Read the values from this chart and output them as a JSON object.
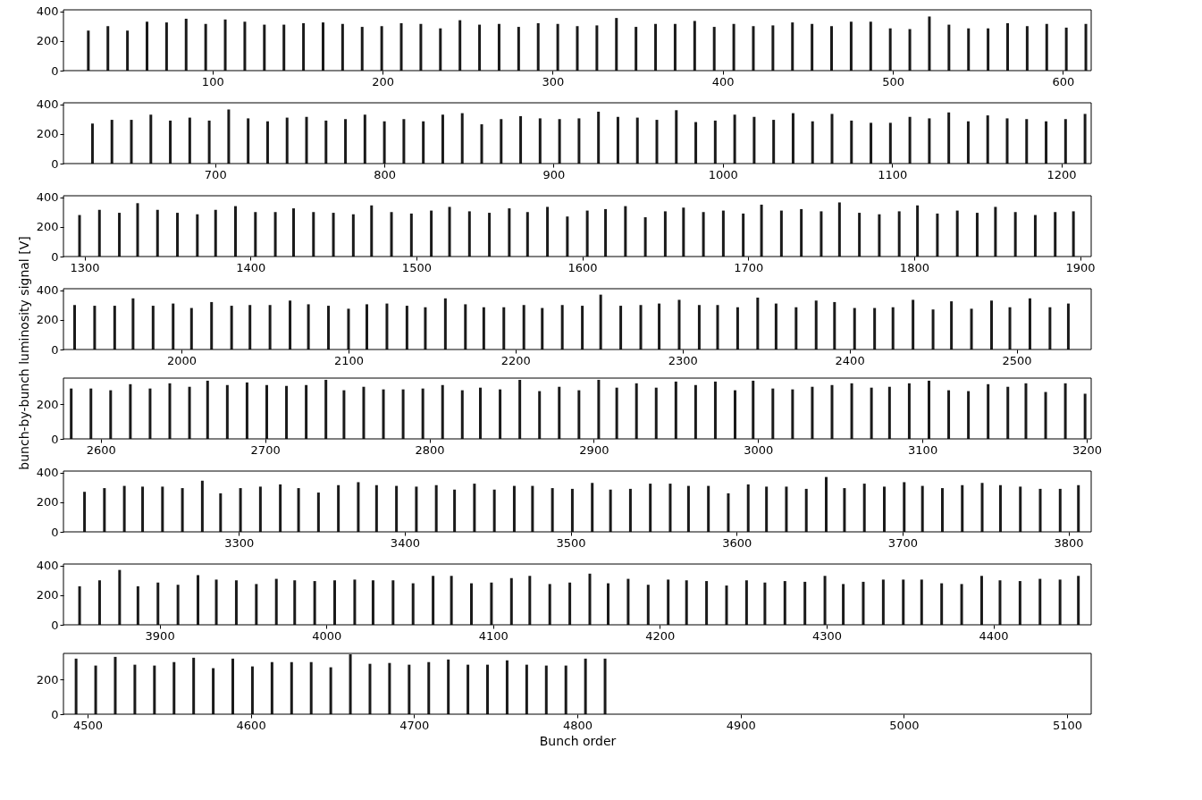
{
  "chart_data": [
    {
      "type": "bar",
      "color": "#1a1a1a",
      "xlim": [
        15,
        614
      ],
      "xticks": [
        100,
        200,
        300,
        400,
        500,
        600
      ],
      "ylim": [
        0,
        410
      ],
      "yticks": [
        0,
        200,
        400
      ],
      "x": [
        27,
        38.5,
        50,
        61.5,
        73,
        84.5,
        96,
        107.5,
        119,
        130.5,
        142,
        153.5,
        165,
        176.5,
        188,
        199.5,
        211,
        222.5,
        234,
        245.5,
        257,
        268.5,
        280,
        291.5,
        303,
        314.5,
        326,
        337.5,
        349,
        360.5,
        372,
        383.5,
        395,
        406.5,
        418,
        429.5,
        441,
        452.5,
        464,
        475.5,
        487,
        498.5,
        510,
        521.5,
        533,
        544.5,
        556,
        567.5,
        579,
        590.5,
        602,
        613.5
      ],
      "values": [
        270,
        300,
        270,
        330,
        325,
        350,
        315,
        345,
        330,
        310,
        310,
        320,
        325,
        315,
        295,
        300,
        320,
        315,
        285,
        340,
        310,
        315,
        295,
        320,
        315,
        300,
        305,
        355,
        295,
        315,
        315,
        335,
        295,
        315,
        300,
        305,
        325,
        315,
        300,
        330,
        330,
        285,
        280,
        365,
        310,
        285,
        285,
        320,
        300,
        315,
        290,
        315
      ]
    },
    {
      "type": "bar",
      "color": "#1a1a1a",
      "xlim": [
        613,
        1215
      ],
      "xticks": [
        700,
        800,
        900,
        1000,
        1100,
        1200
      ],
      "ylim": [
        0,
        410
      ],
      "yticks": [
        0,
        200,
        400
      ],
      "x": [
        627.5,
        639,
        650.5,
        662,
        673.5,
        685,
        696.5,
        708,
        719.5,
        731,
        742.5,
        754,
        765.5,
        777,
        788.5,
        800,
        811.5,
        823,
        834.5,
        846,
        857.5,
        869,
        880.5,
        892,
        903.5,
        915,
        926.5,
        938,
        949.5,
        961,
        972.5,
        984,
        995.5,
        1007,
        1018.5,
        1030,
        1041.5,
        1053,
        1064.5,
        1076,
        1087.5,
        1099,
        1110.5,
        1122,
        1133.5,
        1145,
        1156.5,
        1168,
        1179.5,
        1191,
        1202.5,
        1214
      ],
      "values": [
        270,
        295,
        295,
        330,
        290,
        310,
        290,
        365,
        305,
        285,
        310,
        315,
        290,
        300,
        330,
        285,
        300,
        285,
        330,
        340,
        265,
        300,
        320,
        305,
        300,
        305,
        350,
        315,
        310,
        295,
        360,
        280,
        290,
        330,
        315,
        295,
        340,
        285,
        335,
        290,
        275,
        275,
        315,
        305,
        345,
        285,
        325,
        305,
        300,
        285,
        300,
        335
      ]
    },
    {
      "type": "bar",
      "color": "#1a1a1a",
      "xlim": [
        1290,
        1904
      ],
      "xticks": [
        1300,
        1400,
        1500,
        1600,
        1700,
        1800,
        1900
      ],
      "ylim": [
        0,
        410
      ],
      "yticks": [
        0,
        200,
        400
      ],
      "x": [
        1297,
        1309,
        1321,
        1332,
        1344,
        1356,
        1368,
        1379,
        1391,
        1403,
        1415,
        1426,
        1438,
        1450,
        1462,
        1473,
        1485,
        1497,
        1509,
        1520,
        1532,
        1544,
        1556,
        1567,
        1579,
        1591,
        1603,
        1614,
        1626,
        1638,
        1650,
        1661,
        1673,
        1685,
        1697,
        1708,
        1720,
        1732,
        1744,
        1755,
        1767,
        1779,
        1791,
        1802,
        1814,
        1826,
        1838,
        1849,
        1861,
        1873,
        1885,
        1896
      ],
      "values": [
        280,
        315,
        295,
        360,
        315,
        295,
        285,
        315,
        340,
        300,
        300,
        325,
        300,
        295,
        285,
        345,
        300,
        290,
        310,
        335,
        305,
        295,
        325,
        300,
        335,
        270,
        310,
        320,
        340,
        265,
        305,
        330,
        300,
        310,
        290,
        350,
        310,
        320,
        305,
        365,
        295,
        285,
        305,
        345,
        290,
        310,
        295,
        335,
        300,
        280,
        300,
        305
      ]
    },
    {
      "type": "bar",
      "color": "#1a1a1a",
      "xlim": [
        1932,
        2542
      ],
      "xticks": [
        2000,
        2100,
        2200,
        2300,
        2400,
        2500
      ],
      "ylim": [
        0,
        410
      ],
      "yticks": [
        0,
        200,
        400
      ],
      "ylabel": "bunch-by-bunch luminosity signal [V]",
      "x": [
        1936,
        1948,
        1960,
        1971,
        1983,
        1995,
        2006,
        2018,
        2030,
        2041,
        2053,
        2065,
        2076,
        2088,
        2100,
        2111,
        2123,
        2135,
        2146,
        2158,
        2170,
        2181,
        2193,
        2205,
        2216,
        2228,
        2240,
        2251,
        2263,
        2275,
        2286,
        2298,
        2310,
        2321,
        2333,
        2345,
        2356,
        2368,
        2380,
        2391,
        2403,
        2415,
        2426,
        2438,
        2450,
        2461,
        2473,
        2485,
        2496,
        2508,
        2520,
        2531
      ],
      "values": [
        300,
        295,
        295,
        345,
        295,
        310,
        280,
        320,
        295,
        300,
        300,
        330,
        305,
        295,
        275,
        305,
        310,
        295,
        285,
        345,
        305,
        285,
        285,
        300,
        280,
        300,
        295,
        370,
        295,
        300,
        310,
        335,
        300,
        300,
        285,
        350,
        310,
        285,
        330,
        320,
        280,
        280,
        285,
        335,
        270,
        325,
        275,
        330,
        285,
        345,
        285,
        310
      ]
    },
    {
      "type": "bar",
      "color": "#1a1a1a",
      "xlim": [
        2580,
        3200
      ],
      "xticks": [
        2600,
        2700,
        2800,
        2900,
        3000,
        3100,
        3200
      ],
      "ylim": [
        0,
        350
      ],
      "yticks": [
        0,
        200
      ],
      "x": [
        2582,
        2594,
        2606,
        2618,
        2630,
        2642,
        2654,
        2665,
        2677,
        2689,
        2701,
        2713,
        2725,
        2737,
        2748,
        2760,
        2772,
        2784,
        2796,
        2808,
        2820,
        2831,
        2843,
        2855,
        2867,
        2879,
        2891,
        2903,
        2914,
        2926,
        2938,
        2950,
        2962,
        2974,
        2986,
        2997,
        3009,
        3021,
        3033,
        3045,
        3057,
        3069,
        3080,
        3092,
        3104,
        3116,
        3128,
        3140,
        3152,
        3163,
        3175,
        3187,
        3199
      ],
      "values": [
        290,
        290,
        280,
        315,
        290,
        320,
        300,
        335,
        310,
        325,
        310,
        305,
        310,
        340,
        280,
        300,
        285,
        285,
        290,
        310,
        280,
        295,
        285,
        340,
        275,
        300,
        280,
        340,
        295,
        320,
        295,
        330,
        310,
        330,
        280,
        335,
        290,
        285,
        300,
        310,
        320,
        295,
        300,
        320,
        335,
        280,
        275,
        315,
        300,
        320,
        270,
        320,
        260
      ]
    },
    {
      "type": "bar",
      "color": "#1a1a1a",
      "xlim": [
        3197,
        3811
      ],
      "xticks": [
        3300,
        3400,
        3500,
        3600,
        3700,
        3800
      ],
      "ylim": [
        0,
        410
      ],
      "yticks": [
        0,
        200,
        400
      ],
      "x": [
        3207,
        3219,
        3231,
        3242,
        3254,
        3266,
        3278,
        3289,
        3301,
        3313,
        3325,
        3336,
        3348,
        3360,
        3372,
        3383,
        3395,
        3407,
        3419,
        3430,
        3442,
        3454,
        3466,
        3477,
        3489,
        3501,
        3513,
        3524,
        3536,
        3548,
        3560,
        3571,
        3583,
        3595,
        3607,
        3618,
        3630,
        3642,
        3654,
        3665,
        3677,
        3689,
        3701,
        3712,
        3724,
        3736,
        3748,
        3759,
        3771,
        3783,
        3795,
        3806
      ],
      "values": [
        270,
        295,
        310,
        305,
        305,
        295,
        345,
        260,
        295,
        305,
        320,
        295,
        265,
        315,
        335,
        315,
        310,
        305,
        315,
        285,
        325,
        285,
        310,
        310,
        295,
        290,
        330,
        285,
        290,
        325,
        325,
        310,
        310,
        260,
        320,
        305,
        305,
        290,
        370,
        295,
        325,
        305,
        335,
        310,
        295,
        315,
        330,
        315,
        305,
        290,
        290,
        315
      ]
    },
    {
      "type": "bar",
      "color": "#1a1a1a",
      "xlim": [
        3845,
        4456
      ],
      "xticks": [
        3900,
        4000,
        4100,
        4200,
        4300,
        4400
      ],
      "ylim": [
        0,
        410
      ],
      "yticks": [
        0,
        200,
        400
      ],
      "x": [
        3852,
        3864,
        3876,
        3887,
        3899,
        3911,
        3923,
        3934,
        3946,
        3958,
        3970,
        3981,
        3993,
        4005,
        4017,
        4028,
        4040,
        4052,
        4064,
        4075,
        4087,
        4099,
        4111,
        4122,
        4134,
        4146,
        4158,
        4169,
        4181,
        4193,
        4205,
        4216,
        4228,
        4240,
        4252,
        4263,
        4275,
        4287,
        4299,
        4310,
        4322,
        4334,
        4346,
        4357,
        4369,
        4381,
        4393,
        4404,
        4416,
        4428,
        4440,
        4451
      ],
      "values": [
        260,
        300,
        370,
        260,
        285,
        270,
        335,
        305,
        300,
        275,
        310,
        300,
        295,
        300,
        305,
        300,
        300,
        280,
        330,
        330,
        280,
        285,
        315,
        330,
        275,
        285,
        345,
        280,
        310,
        270,
        305,
        300,
        295,
        265,
        300,
        285,
        295,
        290,
        330,
        275,
        290,
        305,
        305,
        305,
        280,
        275,
        330,
        300,
        295,
        310,
        305,
        330
      ]
    },
    {
      "type": "bar",
      "color": "#1a1a1a",
      "xlim": [
        4488,
        5112
      ],
      "xticks": [
        4500,
        4600,
        4700,
        4800,
        4900,
        5000,
        5100
      ],
      "ylim": [
        0,
        350
      ],
      "yticks": [
        0,
        200
      ],
      "xlabel": "Bunch order",
      "x": [
        4493,
        4505,
        4517,
        4529,
        4541,
        4553,
        4565,
        4577,
        4589,
        4601,
        4613,
        4625,
        4637,
        4649,
        4661,
        4673,
        4685,
        4697,
        4709,
        4721,
        4733,
        4745,
        4757,
        4769,
        4781,
        4793,
        4805,
        4817
      ],
      "values": [
        320,
        280,
        330,
        285,
        280,
        300,
        325,
        265,
        320,
        275,
        300,
        300,
        300,
        270,
        345,
        290,
        295,
        285,
        300,
        315,
        285,
        285,
        310,
        285,
        280,
        280,
        320,
        320
      ]
    }
  ]
}
